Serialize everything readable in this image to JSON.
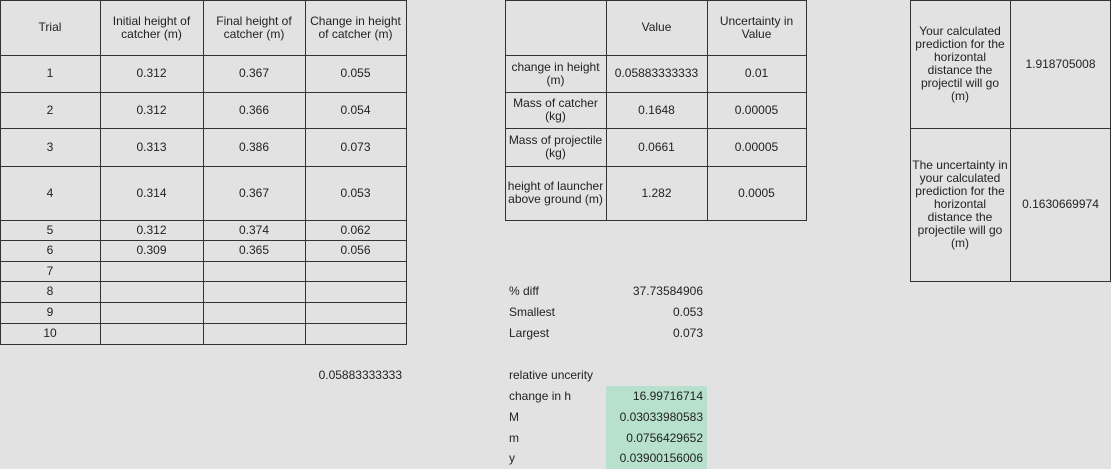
{
  "trial_table": {
    "headers": {
      "trial": "Trial",
      "initial": "Initial height of catcher (m)",
      "final": "Final height of catcher (m)",
      "change": "Change in height of catcher (m)"
    },
    "rows": [
      {
        "trial": "1",
        "initial": "0.312",
        "final": "0.367",
        "change": "0.055"
      },
      {
        "trial": "2",
        "initial": "0.312",
        "final": "0.366",
        "change": "0.054"
      },
      {
        "trial": "3",
        "initial": "0.313",
        "final": "0.386",
        "change": "0.073"
      },
      {
        "trial": "4",
        "initial": "0.314",
        "final": "0.367",
        "change": "0.053"
      },
      {
        "trial": "5",
        "initial": "0.312",
        "final": "0.374",
        "change": "0.062"
      },
      {
        "trial": "6",
        "initial": "0.309",
        "final": "0.365",
        "change": "0.056"
      },
      {
        "trial": "7",
        "initial": "",
        "final": "",
        "change": ""
      },
      {
        "trial": "8",
        "initial": "",
        "final": "",
        "change": ""
      },
      {
        "trial": "9",
        "initial": "",
        "final": "",
        "change": ""
      },
      {
        "trial": "10",
        "initial": "",
        "final": "",
        "change": ""
      }
    ],
    "average": "0.05883333333"
  },
  "value_table": {
    "headers": {
      "value": "Value",
      "uncertainty": "Uncertainty in Value"
    },
    "rows": [
      {
        "label": "change in height (m)",
        "value": "0.05883333333",
        "uncertainty": "0.01"
      },
      {
        "label": "Mass of catcher (kg)",
        "value": "0.1648",
        "uncertainty": "0.00005"
      },
      {
        "label": "Mass of projectile (kg)",
        "value": "0.0661",
        "uncertainty": "0.00005"
      },
      {
        "label": "height of launcher above ground (m)",
        "value": "1.282",
        "uncertainty": "0.0005"
      }
    ]
  },
  "stats": {
    "pct_diff_label": "% diff",
    "pct_diff_value": "37.73584906",
    "smallest_label": "Smallest",
    "smallest_value": "0.053",
    "largest_label": "Largest",
    "largest_value": "0.073"
  },
  "relative": {
    "title": "relative uncerity",
    "rows": [
      {
        "label": "change in h",
        "value": "16.99716714"
      },
      {
        "label": "M",
        "value": "0.03033980583"
      },
      {
        "label": "m",
        "value": "0.0756429652"
      },
      {
        "label": "y",
        "value": "0.03900156006"
      }
    ]
  },
  "prediction": {
    "distance_label": "Your calculated prediction for the horizontal distance the projectil will go (m)",
    "distance_value": "1.918705008",
    "uncertainty_label": "The uncertainty in your calculated prediction for the horizontal distance the projectile will go (m)",
    "uncertainty_value": "0.1630669974"
  },
  "colors": {
    "highlight": "#b7e1cd",
    "border": "#333333",
    "gridline": "#e2e2e2"
  }
}
